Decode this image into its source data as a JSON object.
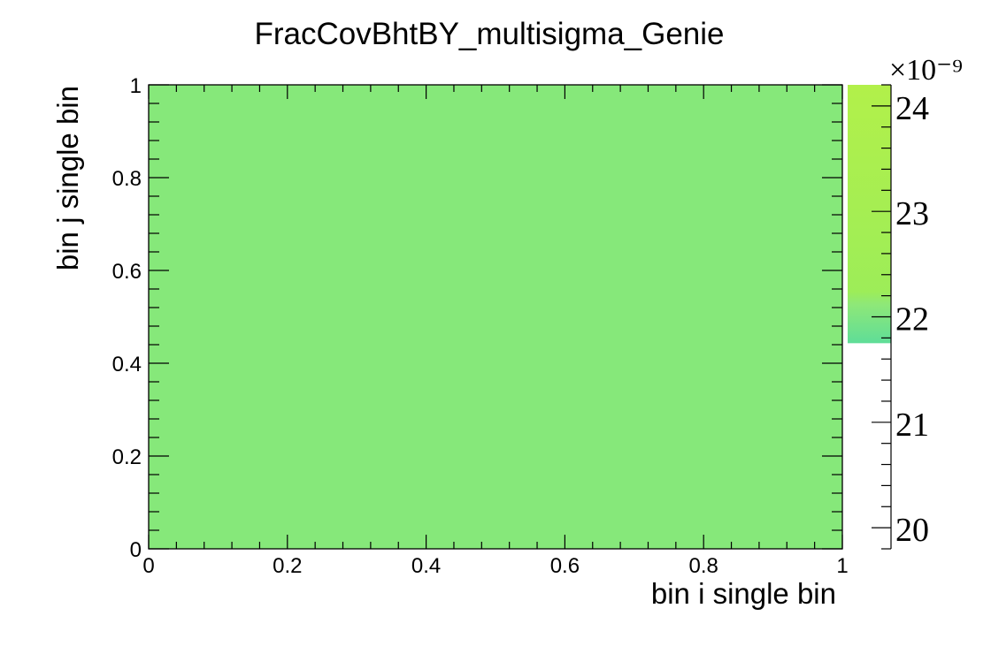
{
  "chart_data": {
    "type": "heatmap",
    "title": "FracCovBhtBY_multisigma_Genie",
    "xlabel": "bin i single bin",
    "ylabel": "bin j single bin",
    "xlim": [
      0,
      1
    ],
    "ylim": [
      0,
      1
    ],
    "x_ticks": [
      "0",
      "0.2",
      "0.4",
      "0.6",
      "0.8",
      "1"
    ],
    "y_ticks": [
      "0",
      "0.2",
      "0.4",
      "0.6",
      "0.8",
      "1"
    ],
    "x_tick_values": [
      0,
      0.2,
      0.4,
      0.6,
      0.8,
      1
    ],
    "y_tick_values": [
      0,
      0.2,
      0.4,
      0.6,
      0.8,
      1
    ],
    "cells": [
      {
        "x_range": [
          0,
          1
        ],
        "y_range": [
          0,
          1
        ],
        "value": 21.75
      }
    ],
    "value_unit_exponent": "×10⁻⁹",
    "colorbar": {
      "range": [
        19.8,
        24.2
      ],
      "ticks": [
        "20",
        "21",
        "22",
        "23",
        "24"
      ],
      "tick_values": [
        20,
        21,
        22,
        23,
        24
      ],
      "filled_range": [
        21.75,
        24.2
      ]
    },
    "colors": {
      "cell": "#86e87a",
      "colorbar_low": "#5fdd98",
      "colorbar_mid": "#9ded58",
      "colorbar_high": "#b2f04a"
    },
    "grid": false,
    "legend": "none"
  }
}
